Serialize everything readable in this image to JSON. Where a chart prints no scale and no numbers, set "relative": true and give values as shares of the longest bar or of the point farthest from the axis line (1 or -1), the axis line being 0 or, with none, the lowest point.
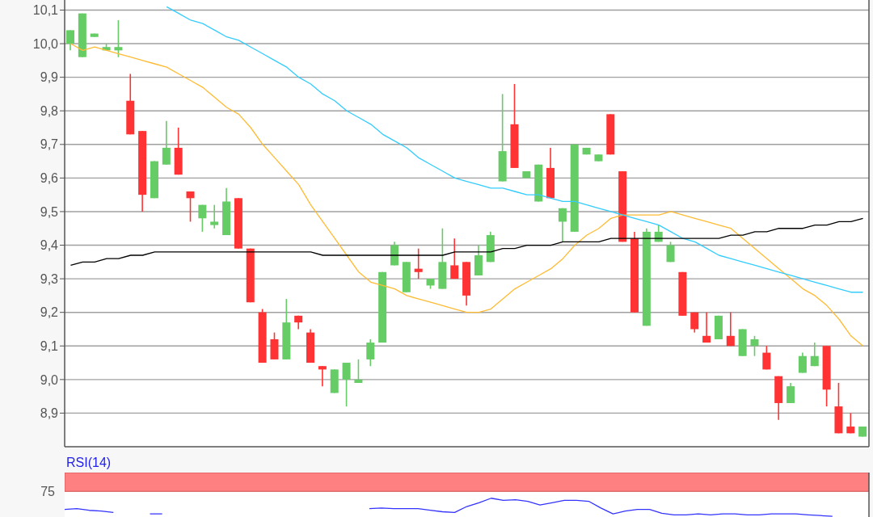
{
  "chart_data": [
    {
      "type": "candlestick",
      "categories": [
        null,
        null,
        null,
        null,
        null,
        null,
        null,
        null,
        null,
        null,
        null,
        null,
        null,
        null,
        null,
        null,
        null,
        null,
        null,
        null,
        null,
        null,
        null,
        null,
        null,
        null,
        null,
        null,
        null,
        null,
        null,
        null,
        null,
        null,
        null,
        null,
        null,
        null,
        null,
        null,
        null,
        null,
        null,
        null,
        null,
        null,
        null,
        null,
        null,
        null,
        null,
        null,
        null,
        null,
        null,
        null,
        null,
        null,
        null,
        null,
        null,
        null,
        null,
        null,
        null,
        null,
        null
      ],
      "ohlc": [
        [
          10.0,
          10.04,
          9.98,
          10.04
        ],
        [
          9.96,
          10.09,
          9.96,
          10.09
        ],
        [
          10.02,
          10.03,
          10.02,
          10.03
        ],
        [
          9.98,
          10.0,
          9.98,
          9.99
        ],
        [
          9.98,
          10.07,
          9.96,
          9.99
        ],
        [
          9.83,
          9.91,
          9.73,
          9.73
        ],
        [
          9.74,
          9.74,
          9.5,
          9.55
        ],
        [
          9.54,
          9.65,
          9.54,
          9.65
        ],
        [
          9.64,
          9.77,
          9.64,
          9.69
        ],
        [
          9.69,
          9.75,
          9.61,
          9.61
        ],
        [
          9.56,
          9.56,
          9.47,
          9.54
        ],
        [
          9.48,
          9.52,
          9.44,
          9.52
        ],
        [
          9.46,
          9.52,
          9.45,
          9.47
        ],
        [
          9.43,
          9.57,
          9.43,
          9.53
        ],
        [
          9.54,
          9.54,
          9.39,
          9.39
        ],
        [
          9.39,
          9.39,
          9.23,
          9.23
        ],
        [
          9.2,
          9.21,
          9.05,
          9.05
        ],
        [
          9.12,
          9.14,
          9.06,
          9.06
        ],
        [
          9.06,
          9.24,
          9.06,
          9.17
        ],
        [
          9.19,
          9.19,
          9.15,
          9.17
        ],
        [
          9.14,
          9.15,
          9.05,
          9.05
        ],
        [
          9.04,
          9.04,
          8.98,
          9.03
        ],
        [
          8.96,
          9.03,
          8.96,
          9.03
        ],
        [
          9.0,
          9.05,
          8.92,
          9.05
        ],
        [
          8.99,
          9.06,
          8.99,
          9.0
        ],
        [
          9.06,
          9.12,
          9.04,
          9.11
        ],
        [
          9.11,
          9.32,
          9.11,
          9.32
        ],
        [
          9.34,
          9.41,
          9.34,
          9.4
        ],
        [
          9.26,
          9.35,
          9.26,
          9.35
        ],
        [
          9.33,
          9.39,
          9.3,
          9.32
        ],
        [
          9.28,
          9.3,
          9.27,
          9.3
        ],
        [
          9.27,
          9.45,
          9.27,
          9.35
        ],
        [
          9.34,
          9.42,
          9.3,
          9.3
        ],
        [
          9.35,
          9.35,
          9.22,
          9.25
        ],
        [
          9.31,
          9.4,
          9.31,
          9.37
        ],
        [
          9.35,
          9.44,
          9.35,
          9.43
        ],
        [
          9.59,
          9.85,
          9.59,
          9.68
        ],
        [
          9.76,
          9.88,
          9.63,
          9.63
        ],
        [
          9.6,
          9.62,
          9.6,
          9.62
        ],
        [
          9.53,
          9.64,
          9.53,
          9.64
        ],
        [
          9.63,
          9.69,
          9.54,
          9.54
        ],
        [
          9.47,
          9.51,
          9.41,
          9.51
        ],
        [
          9.44,
          9.7,
          9.44,
          9.7
        ],
        [
          9.67,
          9.69,
          9.67,
          9.69
        ],
        [
          9.65,
          9.67,
          9.65,
          9.67
        ],
        [
          9.79,
          9.79,
          9.67,
          9.67
        ],
        [
          9.62,
          9.62,
          9.41,
          9.41
        ],
        [
          9.42,
          9.44,
          9.2,
          9.2
        ],
        [
          9.16,
          9.45,
          9.16,
          9.44
        ],
        [
          9.41,
          9.46,
          9.41,
          9.44
        ],
        [
          9.35,
          9.41,
          9.35,
          9.4
        ],
        [
          9.32,
          9.32,
          9.19,
          9.19
        ],
        [
          9.2,
          9.2,
          9.14,
          9.15
        ],
        [
          9.13,
          9.2,
          9.11,
          9.11
        ],
        [
          9.12,
          9.19,
          9.12,
          9.19
        ],
        [
          9.13,
          9.2,
          9.1,
          9.1
        ],
        [
          9.07,
          9.15,
          9.07,
          9.15
        ],
        [
          9.1,
          9.13,
          9.07,
          9.12
        ],
        [
          9.08,
          9.1,
          9.03,
          9.03
        ],
        [
          9.01,
          9.01,
          8.88,
          8.93
        ],
        [
          8.93,
          8.99,
          8.93,
          8.98
        ],
        [
          9.02,
          9.08,
          9.02,
          9.07
        ],
        [
          9.04,
          9.11,
          9.04,
          9.07
        ],
        [
          9.1,
          9.1,
          8.92,
          8.97
        ],
        [
          8.92,
          8.99,
          8.84,
          8.84
        ],
        [
          8.86,
          8.9,
          8.84,
          8.84
        ],
        [
          8.83,
          8.86,
          8.83,
          8.86
        ]
      ],
      "colors": [
        "#66cc66",
        "#66cc66",
        "#66cc66",
        "#66cc66",
        "#66cc66",
        "#ff3333",
        "#ff3333",
        "#66cc66",
        "#66cc66",
        "#ff3333",
        "#ff3333",
        "#66cc66",
        "#66cc66",
        "#66cc66",
        "#ff3333",
        "#ff3333",
        "#ff3333",
        "#ff3333",
        "#66cc66",
        "#ff3333",
        "#ff3333",
        "#ff3333",
        "#66cc66",
        "#66cc66",
        "#66cc66",
        "#66cc66",
        "#66cc66",
        "#66cc66",
        "#66cc66",
        "#ff3333",
        "#66cc66",
        "#66cc66",
        "#ff3333",
        "#ff3333",
        "#66cc66",
        "#66cc66",
        "#66cc66",
        "#ff3333",
        "#66cc66",
        "#66cc66",
        "#ff3333",
        "#66cc66",
        "#66cc66",
        "#66cc66",
        "#66cc66",
        "#ff3333",
        "#ff3333",
        "#ff3333",
        "#66cc66",
        "#66cc66",
        "#66cc66",
        "#ff3333",
        "#ff3333",
        "#ff3333",
        "#66cc66",
        "#ff3333",
        "#66cc66",
        "#66cc66",
        "#ff3333",
        "#ff3333",
        "#66cc66",
        "#66cc66",
        "#66cc66",
        "#ff3333",
        "#ff3333",
        "#ff3333",
        "#66cc66"
      ],
      "series": [
        {
          "type": "line",
          "color": "#ffbb33",
          "values": [
            10.0,
            9.98,
            9.99,
            9.98,
            9.97,
            9.96,
            9.95,
            9.94,
            9.93,
            9.91,
            9.89,
            9.87,
            9.84,
            9.81,
            9.79,
            9.75,
            9.7,
            9.66,
            9.62,
            9.58,
            9.52,
            9.47,
            9.42,
            9.37,
            9.32,
            9.29,
            9.28,
            9.27,
            9.25,
            9.24,
            9.23,
            9.22,
            9.21,
            9.2,
            9.2,
            9.21,
            9.24,
            9.27,
            9.29,
            9.31,
            9.33,
            9.36,
            9.4,
            9.43,
            9.45,
            9.48,
            9.49,
            9.49,
            9.49,
            9.49,
            9.5,
            9.49,
            9.48,
            9.47,
            9.46,
            9.45,
            9.42,
            9.39,
            9.36,
            9.33,
            9.3,
            9.27,
            9.25,
            9.22,
            9.18,
            9.13,
            9.1
          ]
        },
        {
          "type": "line",
          "color": "#33ccff",
          "values": [
            null,
            null,
            null,
            null,
            null,
            null,
            null,
            null,
            10.11,
            10.09,
            10.07,
            10.06,
            10.04,
            10.02,
            10.01,
            9.99,
            9.97,
            9.95,
            9.93,
            9.9,
            9.88,
            9.85,
            9.83,
            9.8,
            9.78,
            9.76,
            9.73,
            9.71,
            9.69,
            9.66,
            9.64,
            9.62,
            9.6,
            9.59,
            9.58,
            9.57,
            9.57,
            9.56,
            9.55,
            9.55,
            9.54,
            9.53,
            9.53,
            9.52,
            9.51,
            9.5,
            9.49,
            9.48,
            9.47,
            9.46,
            9.44,
            9.42,
            9.41,
            9.39,
            9.37,
            9.36,
            9.35,
            9.34,
            9.33,
            9.32,
            9.31,
            9.3,
            9.29,
            9.28,
            9.27,
            9.26,
            9.26
          ]
        },
        {
          "type": "line",
          "color": "#000000",
          "values": [
            9.34,
            9.35,
            9.35,
            9.36,
            9.36,
            9.37,
            9.37,
            9.38,
            9.38,
            9.38,
            9.38,
            9.38,
            9.38,
            9.38,
            9.38,
            9.38,
            9.38,
            9.38,
            9.38,
            9.38,
            9.38,
            9.37,
            9.37,
            9.37,
            9.37,
            9.37,
            9.37,
            9.37,
            9.37,
            9.37,
            9.37,
            9.37,
            9.38,
            9.38,
            9.38,
            9.38,
            9.39,
            9.39,
            9.4,
            9.4,
            9.4,
            9.41,
            9.41,
            9.41,
            9.41,
            9.42,
            9.42,
            9.42,
            9.42,
            9.42,
            9.42,
            9.42,
            9.42,
            9.42,
            9.42,
            9.43,
            9.43,
            9.44,
            9.44,
            9.45,
            9.45,
            9.45,
            9.46,
            9.46,
            9.47,
            9.47,
            9.48
          ]
        }
      ],
      "ylim": [
        8.8,
        10.13
      ],
      "yticks": [
        {
          "value": 8.9,
          "label": "8,9"
        },
        {
          "value": 9.0,
          "label": "9,0"
        },
        {
          "value": 9.1,
          "label": "9,1"
        },
        {
          "value": 9.2,
          "label": "9,2"
        },
        {
          "value": 9.3,
          "label": "9,3"
        },
        {
          "value": 9.4,
          "label": "9,4"
        },
        {
          "value": 9.5,
          "label": "9,5"
        },
        {
          "value": 9.6,
          "label": "9,6"
        },
        {
          "value": 9.7,
          "label": "9,7"
        },
        {
          "value": 9.8,
          "label": "9,8"
        },
        {
          "value": 9.9,
          "label": "9,9"
        },
        {
          "value": 10.0,
          "label": "10,0"
        },
        {
          "value": 10.1,
          "label": "10,1"
        }
      ],
      "grid": "y"
    },
    {
      "type": "line",
      "title": "RSI(14)",
      "categories": [
        null,
        null,
        null,
        null,
        null,
        null,
        null,
        null,
        null,
        null,
        null,
        null,
        null,
        null,
        null,
        null,
        null,
        null,
        null,
        null,
        null,
        null,
        null,
        null,
        null,
        null,
        null,
        null,
        null,
        null,
        null,
        null,
        null,
        null,
        null,
        null,
        null,
        null,
        null,
        null,
        null,
        null,
        null,
        null,
        null,
        null,
        null,
        null,
        null,
        null,
        null,
        null,
        null,
        null,
        null,
        null,
        null,
        null,
        null,
        null,
        null,
        null,
        null,
        null,
        null,
        null,
        null
      ],
      "series": [
        {
          "color": "#3333ff",
          "values": [
            0.38,
            0.42,
            0.33,
            0.29,
            0.21,
            null,
            null,
            null,
            null,
            null,
            null,
            null,
            null,
            null,
            null,
            null,
            null,
            null,
            null,
            null,
            null,
            null,
            null,
            null,
            null,
            null,
            null,
            null,
            null,
            null,
            null,
            null,
            null,
            null,
            null,
            null,
            null,
            null,
            null,
            null,
            null,
            null,
            null,
            null,
            null,
            null,
            null,
            null,
            null,
            null,
            null,
            null,
            null,
            null,
            null,
            null,
            null,
            null,
            null,
            null,
            null,
            null,
            null,
            null,
            null,
            null,
            null
          ]
        },
        {
          "color": "#3333ff",
          "values": [
            null,
            null,
            null,
            null,
            null,
            null,
            null,
            0.13,
            0.13,
            null,
            null,
            null,
            null,
            null,
            null,
            null,
            null,
            null,
            null,
            null,
            null,
            null,
            null,
            null,
            null,
            null,
            null,
            null,
            null,
            null,
            null,
            null,
            null,
            null,
            null,
            null,
            null,
            null,
            null,
            null,
            null,
            null,
            null,
            null,
            null,
            null,
            null,
            null,
            null,
            null,
            null,
            null,
            null,
            null,
            null,
            null,
            null,
            null,
            null,
            null,
            null,
            null,
            null,
            null,
            null,
            null,
            null
          ]
        },
        {
          "color": "#3333ff",
          "values": [
            null,
            null,
            null,
            null,
            null,
            null,
            null,
            null,
            null,
            null,
            null,
            null,
            null,
            null,
            null,
            null,
            null,
            null,
            null,
            null,
            null,
            null,
            null,
            null,
            null,
            0.42,
            0.46,
            0.42,
            0.42,
            0.42,
            0.33,
            0.25,
            0.21,
            0.54,
            0.75,
            1,
            0.88,
            0.92,
            0.83,
            0.63,
            0.75,
            0.88,
            0.88,
            0.83,
            0.46,
            0.13,
            0.29,
            0.38,
            0.38,
            0.17,
            0.08,
            0.08,
            0.13,
            0.08,
            0.13,
            0.13,
            0.08,
            0.08,
            0.13,
            0.13,
            0.13,
            0.08,
            0.04,
            0,
            null,
            null,
            null
          ]
        }
      ],
      "relative": true,
      "annotations": [
        "75"
      ],
      "bands": [
        {
          "axis": "y",
          "from": 1.38,
          "to": 2.42,
          "color": "#ff8080"
        }
      ]
    }
  ]
}
